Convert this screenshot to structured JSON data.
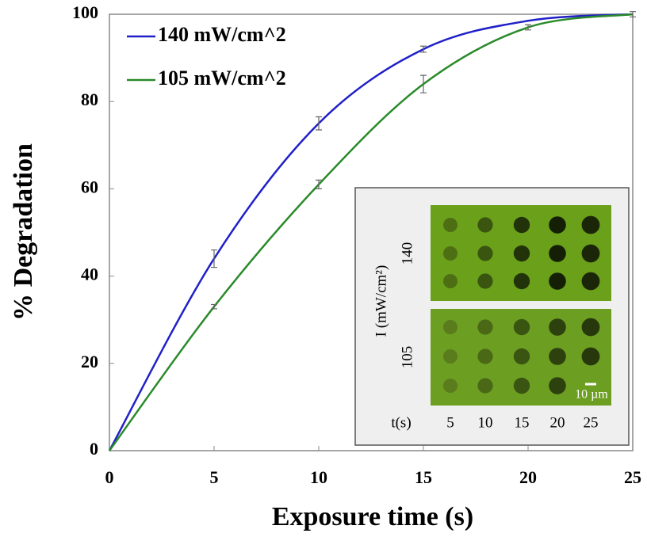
{
  "chart_data": {
    "type": "line",
    "xlabel": "Exposure time (s)",
    "ylabel": "% Degradation",
    "xlim": [
      0,
      25
    ],
    "xticks": [
      0,
      5,
      10,
      15,
      20,
      25
    ],
    "ylim": [
      0,
      100
    ],
    "yticks": [
      0,
      20,
      40,
      60,
      80,
      100
    ],
    "x": [
      0,
      5,
      10,
      15,
      20,
      25
    ],
    "series": [
      {
        "name": "140 mW/cm^2",
        "color": "#2020c8",
        "values": [
          0,
          44,
          75,
          92,
          98.5,
          100
        ],
        "errors": [
          null,
          2,
          1.5,
          0.7,
          null,
          null
        ]
      },
      {
        "name": "105 mW/cm^2",
        "color": "#2a8a2a",
        "values": [
          0,
          33,
          61,
          84,
          97,
          100
        ],
        "errors": [
          null,
          0.5,
          1,
          2,
          0.6,
          0.6
        ]
      }
    ],
    "legend": "upper left",
    "inset": {
      "axis_label": "I (mW/cm²)",
      "rows": [
        "140",
        "105"
      ],
      "time_label": "t(s)",
      "columns": [
        "5",
        "10",
        "15",
        "20",
        "25"
      ],
      "scale_label": "10 µm"
    }
  }
}
